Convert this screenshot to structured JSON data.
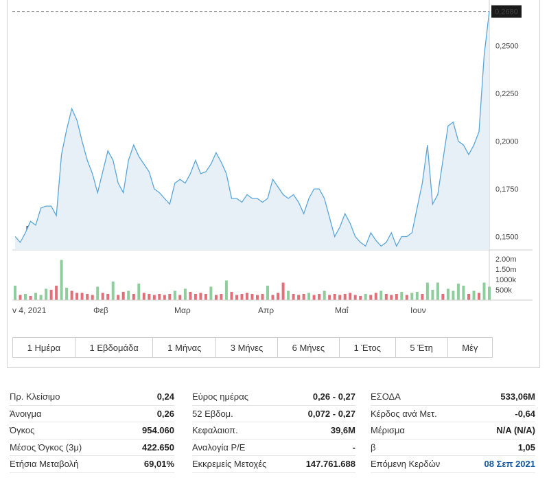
{
  "chart_data": {
    "type": "area",
    "y_ticks": [
      "0,2680",
      "0,2500",
      "0,2250",
      "0,2000",
      "0,1750",
      "0,1500"
    ],
    "y_tick_values": [
      0.268,
      0.25,
      0.225,
      0.2,
      0.175,
      0.15
    ],
    "last_price": 0.268,
    "last_price_label": "0,2680",
    "ylim": [
      0.143,
      0.274
    ],
    "x_labels": [
      "v 4, 2021",
      "Φεβ",
      "Μαρ",
      "Απρ",
      "Μαΐ",
      "Ιουν"
    ],
    "prices": [
      0.15,
      0.147,
      0.152,
      0.158,
      0.156,
      0.165,
      0.166,
      0.166,
      0.161,
      0.193,
      0.206,
      0.217,
      0.211,
      0.2,
      0.19,
      0.183,
      0.173,
      0.184,
      0.195,
      0.19,
      0.178,
      0.173,
      0.19,
      0.198,
      0.192,
      0.188,
      0.184,
      0.175,
      0.173,
      0.17,
      0.167,
      0.178,
      0.18,
      0.178,
      0.183,
      0.19,
      0.183,
      0.184,
      0.188,
      0.194,
      0.189,
      0.183,
      0.17,
      0.17,
      0.168,
      0.172,
      0.17,
      0.17,
      0.168,
      0.17,
      0.18,
      0.176,
      0.172,
      0.17,
      0.172,
      0.168,
      0.162,
      0.17,
      0.175,
      0.175,
      0.17,
      0.16,
      0.15,
      0.155,
      0.162,
      0.157,
      0.15,
      0.147,
      0.145,
      0.152,
      0.148,
      0.145,
      0.147,
      0.152,
      0.145,
      0.15,
      0.15,
      0.152,
      0.165,
      0.178,
      0.198,
      0.167,
      0.172,
      0.19,
      0.208,
      0.21,
      0.2,
      0.198,
      0.193,
      0.198,
      0.205,
      0.245,
      0.268
    ],
    "volume_ticks": [
      "2.00m",
      "1.50m",
      "1000k",
      "500k"
    ],
    "volume_tick_values": [
      2000000,
      1500000,
      1000000,
      500000
    ],
    "volume_max": 2000000,
    "volumes": [
      [
        700000,
        "up"
      ],
      [
        250000,
        "down"
      ],
      [
        300000,
        "up"
      ],
      [
        200000,
        "down"
      ],
      [
        350000,
        "up"
      ],
      [
        250000,
        "up"
      ],
      [
        550000,
        "up"
      ],
      [
        500000,
        "down"
      ],
      [
        700000,
        "down"
      ],
      [
        1950000,
        "up"
      ],
      [
        600000,
        "up"
      ],
      [
        450000,
        "down"
      ],
      [
        350000,
        "down"
      ],
      [
        350000,
        "down"
      ],
      [
        300000,
        "down"
      ],
      [
        250000,
        "down"
      ],
      [
        650000,
        "up"
      ],
      [
        350000,
        "down"
      ],
      [
        300000,
        "down"
      ],
      [
        900000,
        "up"
      ],
      [
        250000,
        "down"
      ],
      [
        400000,
        "down"
      ],
      [
        450000,
        "up"
      ],
      [
        300000,
        "down"
      ],
      [
        800000,
        "up"
      ],
      [
        350000,
        "down"
      ],
      [
        300000,
        "down"
      ],
      [
        250000,
        "down"
      ],
      [
        300000,
        "down"
      ],
      [
        250000,
        "down"
      ],
      [
        300000,
        "down"
      ],
      [
        450000,
        "up"
      ],
      [
        250000,
        "down"
      ],
      [
        550000,
        "up"
      ],
      [
        400000,
        "down"
      ],
      [
        300000,
        "down"
      ],
      [
        350000,
        "down"
      ],
      [
        300000,
        "down"
      ],
      [
        650000,
        "up"
      ],
      [
        250000,
        "down"
      ],
      [
        300000,
        "down"
      ],
      [
        950000,
        "up"
      ],
      [
        400000,
        "down"
      ],
      [
        250000,
        "down"
      ],
      [
        300000,
        "down"
      ],
      [
        350000,
        "down"
      ],
      [
        300000,
        "down"
      ],
      [
        250000,
        "down"
      ],
      [
        300000,
        "down"
      ],
      [
        700000,
        "up"
      ],
      [
        250000,
        "down"
      ],
      [
        350000,
        "down"
      ],
      [
        850000,
        "down"
      ],
      [
        450000,
        "up"
      ],
      [
        300000,
        "down"
      ],
      [
        250000,
        "down"
      ],
      [
        300000,
        "down"
      ],
      [
        350000,
        "up"
      ],
      [
        250000,
        "down"
      ],
      [
        300000,
        "down"
      ],
      [
        450000,
        "up"
      ],
      [
        250000,
        "down"
      ],
      [
        300000,
        "down"
      ],
      [
        250000,
        "down"
      ],
      [
        300000,
        "down"
      ],
      [
        350000,
        "down"
      ],
      [
        250000,
        "down"
      ],
      [
        200000,
        "down"
      ],
      [
        300000,
        "up"
      ],
      [
        250000,
        "down"
      ],
      [
        350000,
        "down"
      ],
      [
        450000,
        "up"
      ],
      [
        300000,
        "down"
      ],
      [
        250000,
        "down"
      ],
      [
        300000,
        "down"
      ],
      [
        400000,
        "up"
      ],
      [
        250000,
        "down"
      ],
      [
        350000,
        "up"
      ],
      [
        400000,
        "up"
      ],
      [
        300000,
        "down"
      ],
      [
        850000,
        "up"
      ],
      [
        500000,
        "up"
      ],
      [
        850000,
        "up"
      ],
      [
        300000,
        "down"
      ],
      [
        550000,
        "up"
      ],
      [
        450000,
        "up"
      ],
      [
        800000,
        "up"
      ],
      [
        700000,
        "up"
      ],
      [
        300000,
        "down"
      ],
      [
        450000,
        "up"
      ],
      [
        350000,
        "down"
      ],
      [
        850000,
        "up"
      ],
      [
        650000,
        "up"
      ]
    ],
    "colors": {
      "line": "#5aa6d8",
      "area": "#e7eff7",
      "up": "#8fce9c",
      "down": "#e0707a",
      "dash": "#777777"
    },
    "watermark": {
      "brand": "Investing",
      "suffix": ".com"
    }
  },
  "ranges": [
    "1 Ημέρα",
    "1 Εβδομάδα",
    "1 Μήνας",
    "3 Μήνες",
    "6 Μήνες",
    "1 Έτος",
    "5 Έτη",
    "Μέγ"
  ],
  "stats": {
    "col1": [
      {
        "label": "Πρ. Κλείσιμο",
        "value": "0,24"
      },
      {
        "label": "Άνοιγμα",
        "value": "0,26"
      },
      {
        "label": "Όγκος",
        "value": "954.060"
      },
      {
        "label": "Μέσος Όγκος (3μ)",
        "value": "422.650"
      },
      {
        "label": "Ετήσια Μεταβολή",
        "value": "69,01%"
      }
    ],
    "col2": [
      {
        "label": "Εύρος ημέρας",
        "value": "0,26 - 0,27"
      },
      {
        "label": "52 Εβδομ.",
        "value": "0,072 - 0,27"
      },
      {
        "label": "Κεφαλαιοπ.",
        "value": "39,6M"
      },
      {
        "label": "Αναλογία P/E",
        "value": "-"
      },
      {
        "label": "Εκκρεμείς Μετοχές",
        "value": "147.761.688"
      }
    ],
    "col3": [
      {
        "label": "ΕΣΟΔΑ",
        "value": "533,06M"
      },
      {
        "label": "Κέρδος ανά Μετ.",
        "value": "-0,64"
      },
      {
        "label": "Μέρισμα",
        "value": "N/A (N/A)"
      },
      {
        "label": "β",
        "value": "1,05"
      },
      {
        "label": "Επόμενη Κερδών",
        "value": "08 Σεπ 2021"
      }
    ]
  }
}
